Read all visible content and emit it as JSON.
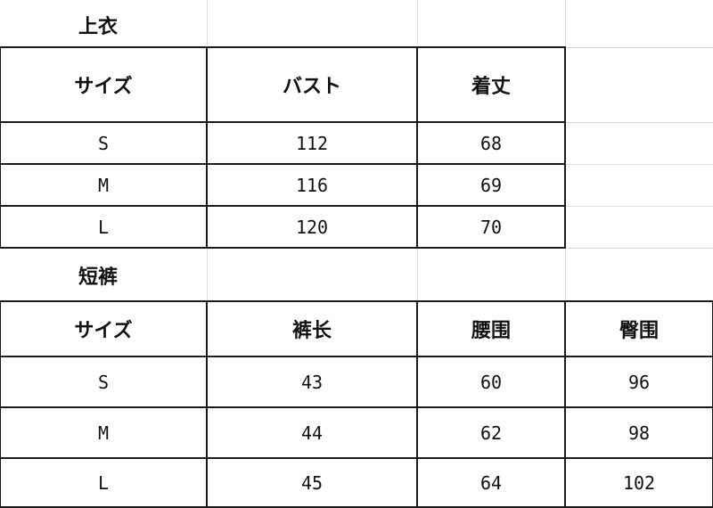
{
  "tops": {
    "title": "上衣",
    "headers": [
      "サイズ",
      "バスト",
      "着丈"
    ],
    "rows": [
      [
        "S",
        "112",
        "68"
      ],
      [
        "M",
        "116",
        "69"
      ],
      [
        "L",
        "120",
        "70"
      ]
    ]
  },
  "shorts": {
    "title": "短裤",
    "headers": [
      "サイズ",
      "裤长",
      "腰围",
      "臀围"
    ],
    "rows": [
      [
        "S",
        "43",
        "60",
        "96"
      ],
      [
        "M",
        "44",
        "62",
        "98"
      ],
      [
        "L",
        "45",
        "64",
        "102"
      ]
    ]
  }
}
